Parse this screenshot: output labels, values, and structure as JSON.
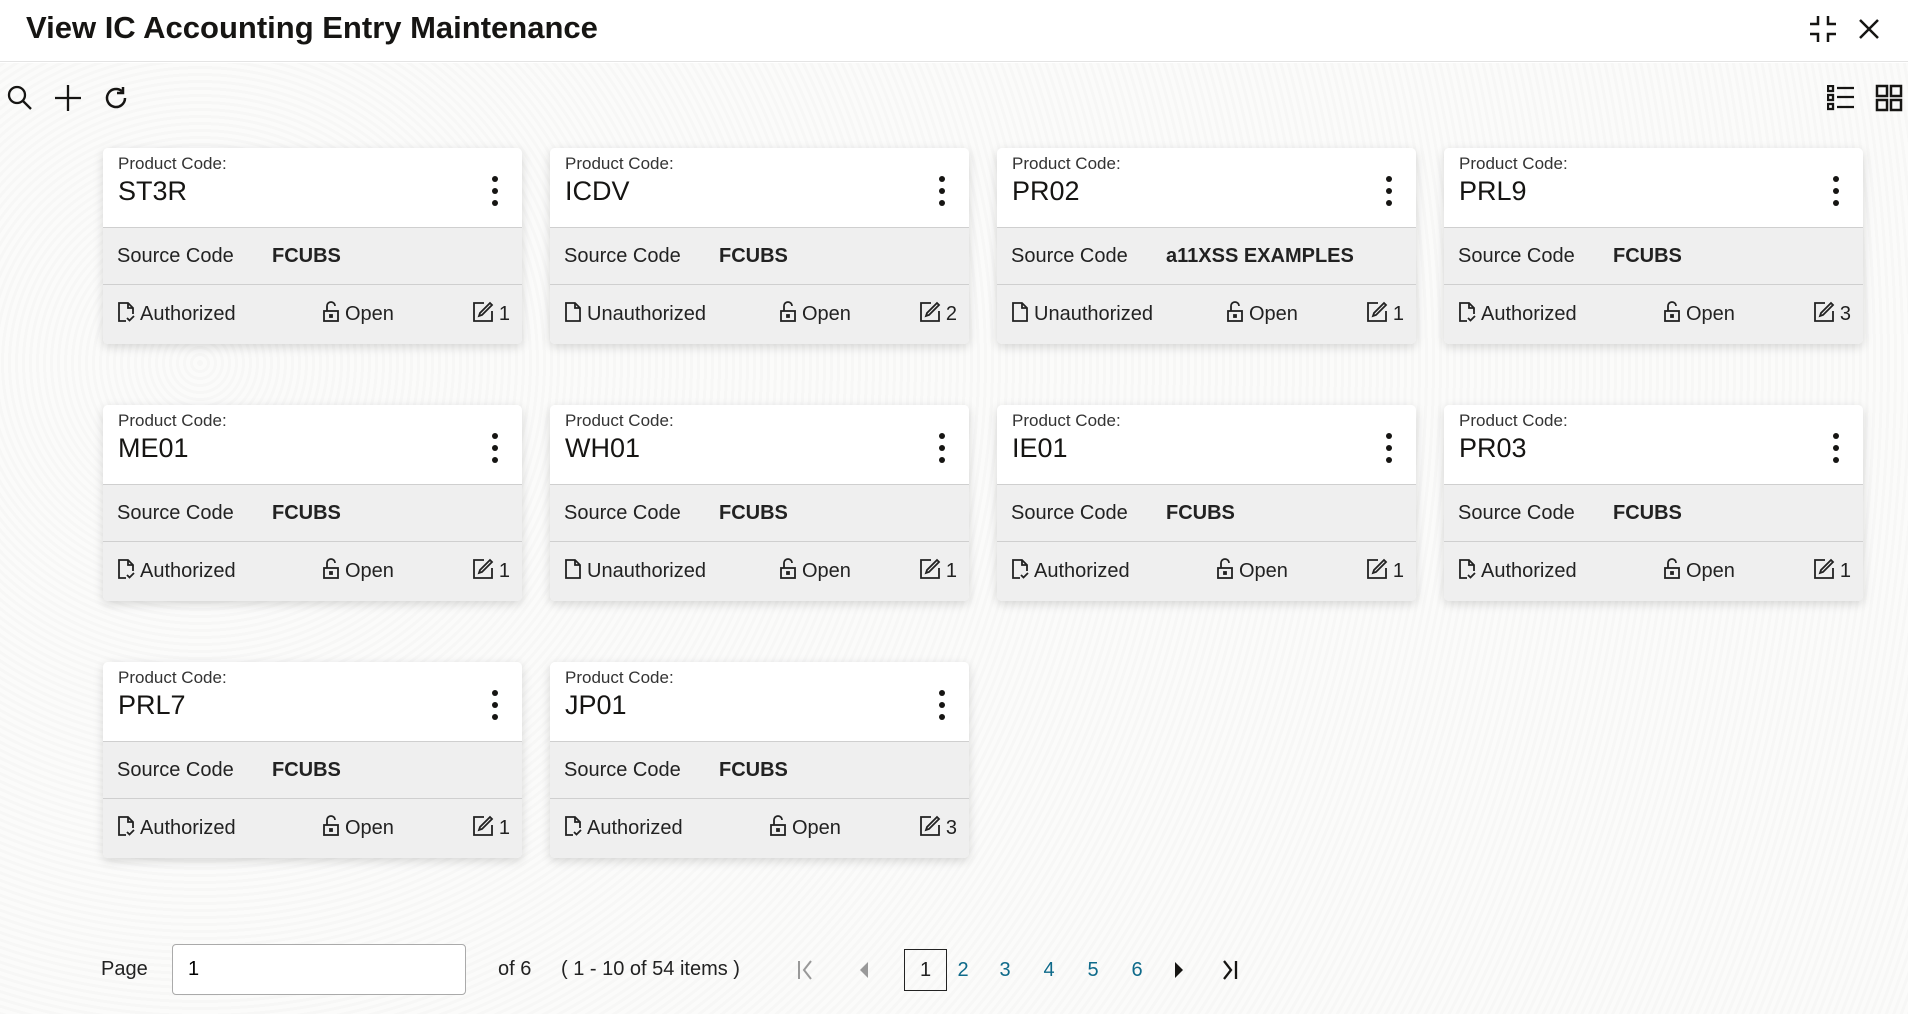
{
  "header": {
    "title": "View IC Accounting Entry Maintenance",
    "icons": [
      "minimize-icon",
      "close-icon"
    ]
  },
  "toolbar": {
    "icons": [
      "search-icon",
      "add-icon",
      "refresh-icon",
      "list-view-icon",
      "grid-view-icon"
    ]
  },
  "card_labels": {
    "product_code": "Product Code:",
    "source_code": "Source Code"
  },
  "cards": [
    {
      "product_code": "ST3R",
      "source_code": "FCUBS",
      "status": "Authorized",
      "record": "Open",
      "versions": "1"
    },
    {
      "product_code": "ICDV",
      "source_code": "FCUBS",
      "status": "Unauthorized",
      "record": "Open",
      "versions": "2"
    },
    {
      "product_code": "PR02",
      "source_code": "a11XSS EXAMPLES",
      "status": "Unauthorized",
      "record": "Open",
      "versions": "1"
    },
    {
      "product_code": "PRL9",
      "source_code": "FCUBS",
      "status": "Authorized",
      "record": "Open",
      "versions": "3"
    },
    {
      "product_code": "ME01",
      "source_code": "FCUBS",
      "status": "Authorized",
      "record": "Open",
      "versions": "1"
    },
    {
      "product_code": "WH01",
      "source_code": "FCUBS",
      "status": "Unauthorized",
      "record": "Open",
      "versions": "1"
    },
    {
      "product_code": "IE01",
      "source_code": "FCUBS",
      "status": "Authorized",
      "record": "Open",
      "versions": "1"
    },
    {
      "product_code": "PR03",
      "source_code": "FCUBS",
      "status": "Authorized",
      "record": "Open",
      "versions": "1"
    },
    {
      "product_code": "PRL7",
      "source_code": "FCUBS",
      "status": "Authorized",
      "record": "Open",
      "versions": "1"
    },
    {
      "product_code": "JP01",
      "source_code": "FCUBS",
      "status": "Authorized",
      "record": "Open",
      "versions": "3"
    }
  ],
  "pagination": {
    "page_label": "Page",
    "page_value": "1",
    "of_pages": "of 6",
    "items_summary": "( 1 - 10 of 54 items )",
    "pages": [
      "1",
      "2",
      "3",
      "4",
      "5",
      "6"
    ],
    "current": "1"
  },
  "colors": {
    "page_link": "#0e6a8a"
  }
}
